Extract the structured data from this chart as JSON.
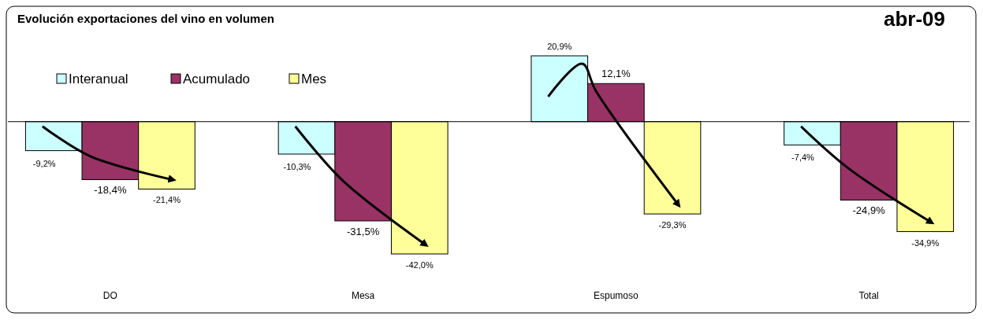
{
  "chart_data": {
    "type": "bar",
    "title": "Evolución exportaciones del vino en volumen",
    "subtitle": "abr-09",
    "categories": [
      "DO",
      "Mesa",
      "Espumoso",
      "Total"
    ],
    "series": [
      {
        "name": "Interanual",
        "color": "#ccffff",
        "values": [
          -9.2,
          -10.3,
          20.9,
          -7.4
        ],
        "value_labels": [
          "-9,2%",
          "-10,3%",
          "20,9%",
          "-7,4%"
        ]
      },
      {
        "name": "Acumulado",
        "color": "#993366",
        "values": [
          -18.4,
          -31.5,
          12.1,
          -24.9
        ],
        "value_labels": [
          "-18,4%",
          "-31,5%",
          "12,1%",
          "-24,9%"
        ]
      },
      {
        "name": "Mes",
        "color": "#ffff99",
        "values": [
          -21.4,
          -42.0,
          -29.3,
          -34.9
        ],
        "value_labels": [
          "-21,4%",
          "-42,0%",
          "-29,3%",
          "-34,9%"
        ]
      }
    ],
    "legend": "top left"
  }
}
